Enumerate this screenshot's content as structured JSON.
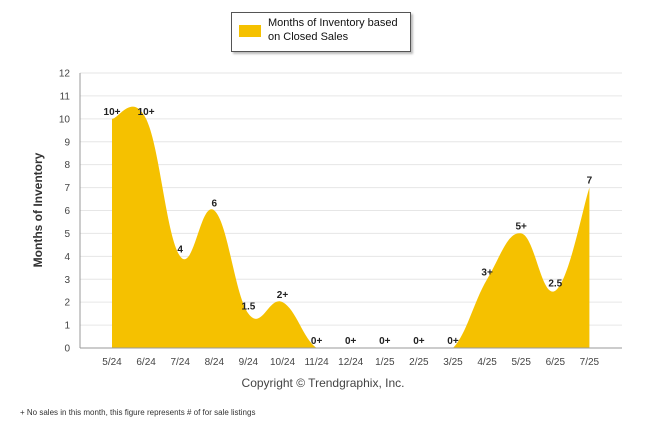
{
  "chart_data": {
    "type": "area",
    "title": "",
    "xlabel": "",
    "ylabel": "Months of Inventory",
    "ylim": [
      0,
      12
    ],
    "yticks": [
      0,
      1,
      2,
      3,
      4,
      5,
      6,
      7,
      8,
      9,
      10,
      11,
      12
    ],
    "grid": true,
    "legend_position": "top-center",
    "color": "#F5C100",
    "categories": [
      "5/24",
      "6/24",
      "7/24",
      "8/24",
      "9/24",
      "10/24",
      "11/24",
      "12/24",
      "1/25",
      "2/25",
      "3/25",
      "4/25",
      "5/25",
      "6/25",
      "7/25"
    ],
    "series": [
      {
        "name": "Months of Inventory based on Closed Sales",
        "values": [
          10,
          10,
          4,
          6,
          1.5,
          2,
          0,
          0,
          0,
          0,
          0,
          3,
          5,
          2.5,
          7
        ],
        "data_labels": [
          "10+",
          "10+",
          "4",
          "6",
          "1.5",
          "2+",
          "0+",
          "0+",
          "0+",
          "0+",
          "0+",
          "3+",
          "5+",
          "2.5",
          "7"
        ]
      }
    ]
  },
  "legend": {
    "line1": "Months of Inventory based",
    "line2": "on Closed Sales"
  },
  "copyright": "Copyright © Trendgraphix, Inc.",
  "footnote": "+  No sales in this month, this figure represents # of for sale listings"
}
